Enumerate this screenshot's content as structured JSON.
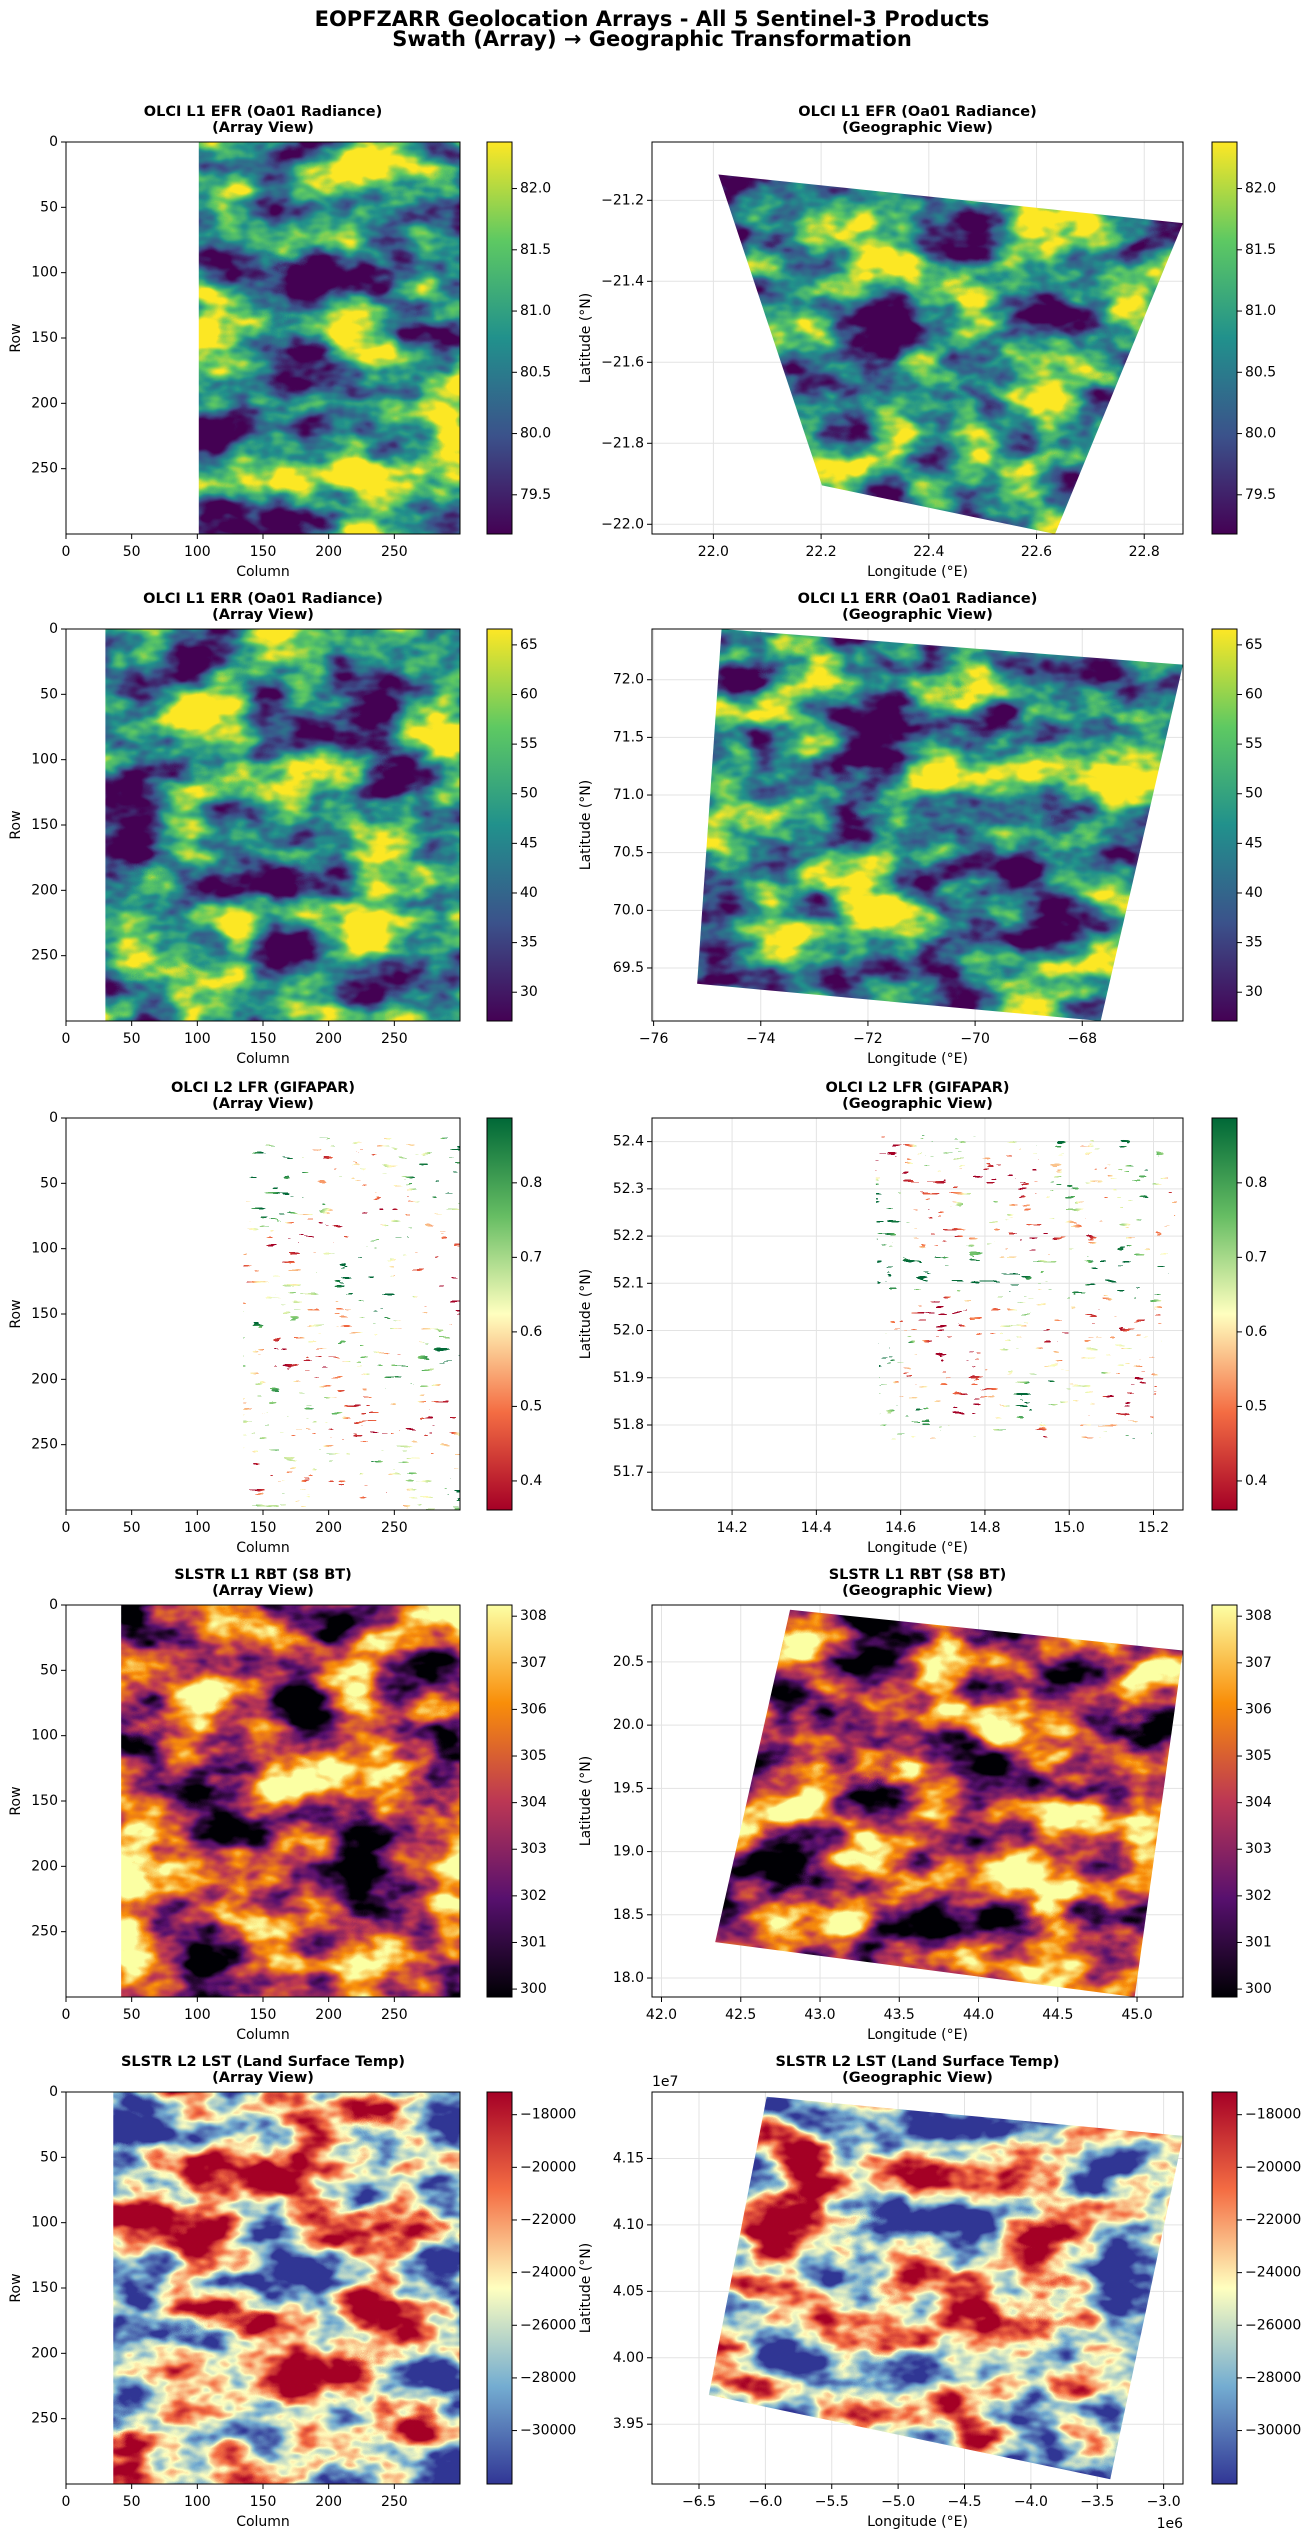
{
  "title": "EOPFZARR Geolocation Arrays - All 5 Sentinel-3 Products",
  "subtitle": "Swath (Array) → Geographic Transformation",
  "chart_data": [
    {
      "type": "heatmap",
      "title": "OLCI L1 EFR (Oa01 Radiance)",
      "subtitle": "(Array View)",
      "xlabel": "Column",
      "ylabel": "Row",
      "xlim": [
        0,
        300
      ],
      "ylim": [
        300,
        0
      ],
      "xticks": [
        0,
        50,
        100,
        150,
        200,
        250
      ],
      "yticks": [
        0,
        50,
        100,
        150,
        200,
        250
      ],
      "grid": false,
      "colormap": "viridis",
      "clim": [
        79.18,
        82.38
      ],
      "cticks": [
        79.5,
        {
          "value": 80.0,
          "label": "80.0"
        },
        80.5,
        {
          "value": 81.0,
          "label": "81.0"
        },
        81.5,
        {
          "value": 82.0,
          "label": "82.0"
        }
      ]
    },
    {
      "type": "heatmap",
      "title": "OLCI L1 EFR (Oa01 Radiance)",
      "subtitle": "(Geographic View)",
      "xlabel": "Longitude (°E)",
      "ylabel": "Latitude (°N)",
      "xlim": [
        21.886,
        22.872
      ],
      "ylim": [
        -22.024,
        -21.056
      ],
      "xticks": [
        {
          "value": 22.0,
          "label": "22.0"
        },
        22.2,
        22.4,
        22.6,
        22.8
      ],
      "yticks": [
        {
          "value": -22.0,
          "label": "−22.0"
        },
        {
          "value": -21.8,
          "label": "−21.8"
        },
        {
          "value": -21.6,
          "label": "−21.6"
        },
        {
          "value": -21.4,
          "label": "−21.4"
        },
        {
          "value": -21.2,
          "label": "−21.2"
        }
      ],
      "grid": true,
      "colormap": "viridis",
      "clim": [
        79.18,
        82.38
      ],
      "cticks": [
        79.5,
        {
          "value": 80.0,
          "label": "80.0"
        },
        80.5,
        {
          "value": 81.0,
          "label": "81.0"
        },
        81.5,
        {
          "value": 82.0,
          "label": "82.0"
        }
      ]
    },
    {
      "type": "heatmap",
      "title": "OLCI L1 ERR (Oa01 Radiance)",
      "subtitle": "(Array View)",
      "xlabel": "Column",
      "ylabel": "Row",
      "xlim": [
        0,
        300
      ],
      "ylim": [
        300,
        0
      ],
      "xticks": [
        0,
        50,
        100,
        150,
        200,
        250
      ],
      "yticks": [
        0,
        50,
        100,
        150,
        200,
        250
      ],
      "grid": false,
      "colormap": "viridis",
      "clim": [
        27.1,
        66.6
      ],
      "cticks": [
        30,
        35,
        40,
        45,
        50,
        55,
        60,
        65
      ]
    },
    {
      "type": "heatmap",
      "title": "OLCI L1 ERR (Oa01 Radiance)",
      "subtitle": "(Geographic View)",
      "xlabel": "Longitude (°E)",
      "ylabel": "Latitude (°N)",
      "xlim": [
        -76.03,
        -66.12
      ],
      "ylim": [
        69.04,
        72.44
      ],
      "xticks": [
        {
          "value": -76,
          "label": "−76"
        },
        {
          "value": -74,
          "label": "−74"
        },
        {
          "value": -72,
          "label": "−72"
        },
        {
          "value": -70,
          "label": "−70"
        },
        {
          "value": -68,
          "label": "−68"
        }
      ],
      "yticks": [
        69.5,
        {
          "value": 70.0,
          "label": "70.0"
        },
        70.5,
        {
          "value": 71.0,
          "label": "71.0"
        },
        71.5,
        {
          "value": 72.0,
          "label": "72.0"
        }
      ],
      "grid": true,
      "colormap": "viridis",
      "clim": [
        27.1,
        66.6
      ],
      "cticks": [
        30,
        35,
        40,
        45,
        50,
        55,
        60,
        65
      ]
    },
    {
      "type": "heatmap",
      "title": "OLCI L2 LFR (GIFAPAR)",
      "subtitle": "(Array View)",
      "xlabel": "Column",
      "ylabel": "Row",
      "xlim": [
        0,
        300
      ],
      "ylim": [
        300,
        0
      ],
      "xticks": [
        0,
        50,
        100,
        150,
        200,
        250
      ],
      "yticks": [
        0,
        50,
        100,
        150,
        200,
        250
      ],
      "grid": false,
      "colormap": "RdYlGn",
      "clim": [
        0.361,
        0.887
      ],
      "cticks": [
        0.4,
        0.5,
        0.6,
        0.7,
        0.8
      ]
    },
    {
      "type": "heatmap",
      "title": "OLCI L2 LFR (GIFAPAR)",
      "subtitle": "(Geographic View)",
      "xlabel": "Longitude (°E)",
      "ylabel": "Latitude (°N)",
      "xlim": [
        14.01,
        15.27
      ],
      "ylim": [
        51.62,
        52.45
      ],
      "xticks": [
        14.2,
        14.4,
        14.6,
        14.8,
        {
          "value": 15.0,
          "label": "15.0"
        },
        15.2
      ],
      "yticks": [
        51.7,
        51.8,
        51.9,
        {
          "value": 52.0,
          "label": "52.0"
        },
        52.1,
        52.2,
        52.3,
        52.4
      ],
      "grid": true,
      "colormap": "RdYlGn",
      "clim": [
        0.361,
        0.887
      ],
      "cticks": [
        0.4,
        0.5,
        0.6,
        0.7,
        0.8
      ]
    },
    {
      "type": "heatmap",
      "title": "SLSTR L1 RBT (S8 BT)",
      "subtitle": "(Array View)",
      "xlabel": "Column",
      "ylabel": "Row",
      "xlim": [
        0,
        300
      ],
      "ylim": [
        300,
        0
      ],
      "xticks": [
        0,
        50,
        100,
        150,
        200,
        250
      ],
      "yticks": [
        0,
        50,
        100,
        150,
        200,
        250
      ],
      "grid": false,
      "colormap": "inferno",
      "clim": [
        299.83,
        308.24
      ],
      "cticks": [
        300,
        301,
        302,
        303,
        304,
        305,
        306,
        307,
        308
      ]
    },
    {
      "type": "heatmap",
      "title": "SLSTR L1 RBT (S8 BT)",
      "subtitle": "(Geographic View)",
      "xlabel": "Longitude (°E)",
      "ylabel": "Latitude (°N)",
      "xlim": [
        41.94,
        45.29
      ],
      "ylim": [
        17.85,
        20.95
      ],
      "xticks": [
        {
          "value": 42.0,
          "label": "42.0"
        },
        42.5,
        {
          "value": 43.0,
          "label": "43.0"
        },
        43.5,
        {
          "value": 44.0,
          "label": "44.0"
        },
        44.5,
        {
          "value": 45.0,
          "label": "45.0"
        }
      ],
      "yticks": [
        {
          "value": 18.0,
          "label": "18.0"
        },
        18.5,
        {
          "value": 19.0,
          "label": "19.0"
        },
        19.5,
        {
          "value": 20.0,
          "label": "20.0"
        },
        20.5
      ],
      "grid": true,
      "colormap": "inferno",
      "clim": [
        299.83,
        308.24
      ],
      "cticks": [
        300,
        301,
        302,
        303,
        304,
        305,
        306,
        307,
        308
      ]
    },
    {
      "type": "heatmap",
      "title": "SLSTR L2 LST (Land Surface Temp)",
      "subtitle": "(Array View)",
      "xlabel": "Column",
      "ylabel": "Row",
      "xlim": [
        0,
        300
      ],
      "ylim": [
        300,
        0
      ],
      "xticks": [
        0,
        50,
        100,
        150,
        200,
        250
      ],
      "yticks": [
        0,
        50,
        100,
        150,
        200,
        250
      ],
      "grid": false,
      "colormap": "RdYlBu_r",
      "clim": [
        -32030,
        -17138
      ],
      "cticks": [
        {
          "value": -30000,
          "label": "−30000"
        },
        {
          "value": -28000,
          "label": "−28000"
        },
        {
          "value": -26000,
          "label": "−26000"
        },
        {
          "value": -24000,
          "label": "−24000"
        },
        {
          "value": -22000,
          "label": "−22000"
        },
        {
          "value": -20000,
          "label": "−20000"
        },
        {
          "value": -18000,
          "label": "−18000"
        }
      ]
    },
    {
      "type": "heatmap",
      "title": "SLSTR L2 LST (Land Surface Temp)",
      "subtitle": "(Geographic View)",
      "xlabel": "Longitude (°E)",
      "ylabel": "Latitude (°N)",
      "xlim": [
        -6.854,
        -2.854
      ],
      "ylim": [
        3.905,
        4.2
      ],
      "x_offset_label": "1e6",
      "y_offset_label": "1e7",
      "xticks": [
        {
          "value": -6.5,
          "label": "−6.5"
        },
        {
          "value": -6.0,
          "label": "−6.0"
        },
        {
          "value": -5.5,
          "label": "−5.5"
        },
        {
          "value": -5.0,
          "label": "−5.0"
        },
        {
          "value": -4.5,
          "label": "−4.5"
        },
        {
          "value": -4.0,
          "label": "−4.0"
        },
        {
          "value": -3.5,
          "label": "−3.5"
        },
        {
          "value": -3.0,
          "label": "−3.0"
        }
      ],
      "yticks": [
        3.95,
        {
          "value": 4.0,
          "label": "4.00"
        },
        4.05,
        {
          "value": 4.1,
          "label": "4.10"
        },
        4.15
      ],
      "grid": true,
      "colormap": "RdYlBu_r",
      "clim": [
        -32030,
        -17138
      ],
      "cticks": [
        {
          "value": -30000,
          "label": "−30000"
        },
        {
          "value": -28000,
          "label": "−28000"
        },
        {
          "value": -26000,
          "label": "−26000"
        },
        {
          "value": -24000,
          "label": "−24000"
        },
        {
          "value": -22000,
          "label": "−22000"
        },
        {
          "value": -20000,
          "label": "−20000"
        },
        {
          "value": -18000,
          "label": "−18000"
        }
      ]
    }
  ]
}
